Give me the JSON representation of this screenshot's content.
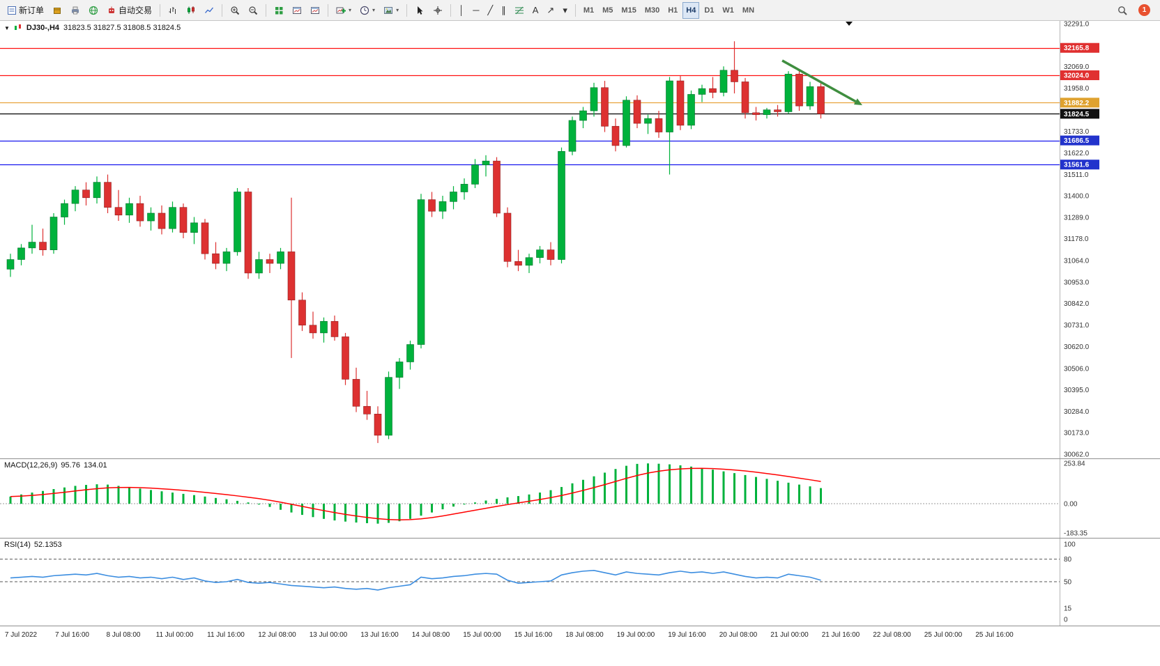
{
  "toolbar": {
    "timeframes": [
      "M1",
      "M5",
      "M15",
      "M30",
      "H1",
      "H4",
      "D1",
      "W1",
      "MN"
    ],
    "active_timeframe": "H4",
    "notification_count": "1",
    "groups": [
      {
        "items": [
          {
            "name": "new-order-button",
            "icon": "form",
            "icon_color": "#4a6fb5",
            "label": "新订单"
          },
          {
            "name": "mql5-icon",
            "icon": "box",
            "icon_color": "#dda01e"
          },
          {
            "name": "print-icon",
            "icon": "print",
            "icon_color": "#7a8aa8"
          },
          {
            "name": "community-icon",
            "icon": "globe",
            "icon_color": "#2f9e44"
          },
          {
            "name": "autotrade-button",
            "icon": "robot",
            "icon_color": "#cc3333",
            "label": "自动交易"
          }
        ]
      },
      {
        "items": [
          {
            "name": "bars-chart-icon",
            "icon": "bars"
          },
          {
            "name": "candles-chart-icon",
            "icon": "candles"
          },
          {
            "name": "line-chart-icon",
            "icon": "linechart"
          }
        ]
      },
      {
        "items": [
          {
            "name": "zoom-in-icon",
            "icon": "zoomin"
          },
          {
            "name": "zoom-out-icon",
            "icon": "zoomout"
          }
        ]
      },
      {
        "items": [
          {
            "name": "tile-windows-icon",
            "icon": "grid",
            "icon_color": "#2f9e44"
          },
          {
            "name": "chart-window-icon",
            "icon": "winchart"
          },
          {
            "name": "chart-window-2-icon",
            "icon": "winchart"
          }
        ]
      },
      {
        "items": [
          {
            "name": "new-chart-button",
            "icon": "pluschart",
            "dropdown": true
          },
          {
            "name": "period-selector-icon",
            "icon": "clock",
            "dropdown": true
          },
          {
            "name": "chart-snapshot-icon",
            "icon": "image",
            "dropdown": true
          }
        ]
      },
      {
        "items": [
          {
            "name": "cursor-icon",
            "icon": "cursor"
          },
          {
            "name": "crosshair-icon",
            "icon": "crosshair"
          }
        ]
      },
      {
        "items": [
          {
            "name": "vertical-line-tool",
            "glyph": "│"
          },
          {
            "name": "horizontal-line-tool",
            "glyph": "─"
          },
          {
            "name": "trendline-tool",
            "glyph": "╱"
          },
          {
            "name": "channel-tool",
            "glyph": "∥"
          },
          {
            "name": "fibonacci-tool",
            "icon": "fibo"
          },
          {
            "name": "text-tool",
            "glyph": "A"
          },
          {
            "name": "arrows-tool",
            "glyph": "↗"
          },
          {
            "name": "objects-dropdown",
            "glyph": "▾"
          }
        ]
      },
      {
        "type": "timeframes"
      }
    ]
  },
  "symbol_bar": {
    "symbol": "DJ30-,H4",
    "ohlc": "31823.5 31827.5 31808.5 31824.5"
  },
  "colors": {
    "bull": "#00b23c",
    "bear": "#dd3131",
    "macd_hist": "#00b23c",
    "macd_signal": "#ff0000",
    "rsi_line": "#3b8de0",
    "arrow": "#3f8e3f"
  },
  "chart_data": [
    {
      "type": "candlestick",
      "symbol": "DJ30-",
      "timeframe": "H4",
      "ohlc_display": {
        "open": "31823.5",
        "high": "31827.5",
        "low": "31808.5",
        "close": "31824.5"
      },
      "price_range": [
        30062.0,
        32291.0
      ],
      "y_ticks": [
        "32291.0",
        "32069.0",
        "31958.0",
        "31733.0",
        "31622.0",
        "31511.0",
        "31400.0",
        "31289.0",
        "31178.0",
        "31064.0",
        "30953.0",
        "30842.0",
        "30731.0",
        "30620.0",
        "30506.0",
        "30395.0",
        "30284.0",
        "30173.0",
        "30062.0"
      ],
      "levels": [
        {
          "price": 32165.8,
          "label": "32165.8",
          "color": "#ff1010",
          "badge": "#e03030"
        },
        {
          "price": 32024.0,
          "label": "32024.0",
          "color": "#ff1010",
          "badge": "#e03030"
        },
        {
          "price": 31882.2,
          "label": "31882.2",
          "color": "#e8a33d",
          "badge": "#dfa22f"
        },
        {
          "price": 31824.5,
          "label": "31824.5",
          "color": "#000000",
          "badge": "#111111"
        },
        {
          "price": 31686.5,
          "label": "31686.5",
          "color": "#1515ee",
          "badge": "#2233cc"
        },
        {
          "price": 31561.6,
          "label": "31561.6",
          "color": "#1515ee",
          "badge": "#2233cc"
        }
      ],
      "annotation": {
        "type": "down-arrow",
        "x1_frac": 0.7382,
        "price1": 32100,
        "x2_frac": 0.8138,
        "price2": 31869
      },
      "candles": [
        [
          31020,
          31100,
          30980,
          31070
        ],
        [
          31070,
          31150,
          31040,
          31130
        ],
        [
          31130,
          31250,
          31100,
          31160
        ],
        [
          31160,
          31230,
          31090,
          31120
        ],
        [
          31120,
          31310,
          31100,
          31290
        ],
        [
          31290,
          31380,
          31250,
          31360
        ],
        [
          31360,
          31450,
          31320,
          31430
        ],
        [
          31430,
          31470,
          31350,
          31390
        ],
        [
          31390,
          31500,
          31360,
          31470
        ],
        [
          31470,
          31510,
          31310,
          31340
        ],
        [
          31340,
          31430,
          31270,
          31300
        ],
        [
          31300,
          31390,
          31260,
          31360
        ],
        [
          31360,
          31400,
          31240,
          31270
        ],
        [
          31270,
          31340,
          31220,
          31310
        ],
        [
          31310,
          31350,
          31200,
          31230
        ],
        [
          31230,
          31370,
          31210,
          31340
        ],
        [
          31340,
          31360,
          31180,
          31210
        ],
        [
          31210,
          31290,
          31150,
          31260
        ],
        [
          31260,
          31280,
          31070,
          31100
        ],
        [
          31100,
          31160,
          31020,
          31050
        ],
        [
          31050,
          31130,
          31010,
          31110
        ],
        [
          31110,
          31440,
          31090,
          31420
        ],
        [
          31420,
          31440,
          30970,
          31000
        ],
        [
          31000,
          31110,
          30970,
          31070
        ],
        [
          31070,
          31100,
          31000,
          31050
        ],
        [
          31050,
          31130,
          31020,
          31110
        ],
        [
          31110,
          31390,
          30560,
          30860
        ],
        [
          30860,
          30900,
          30700,
          30730
        ],
        [
          30730,
          30800,
          30660,
          30690
        ],
        [
          30690,
          30770,
          30640,
          30750
        ],
        [
          30750,
          30780,
          30650,
          30670
        ],
        [
          30670,
          30690,
          30420,
          30450
        ],
        [
          30450,
          30510,
          30280,
          30310
        ],
        [
          30310,
          30390,
          30240,
          30270
        ],
        [
          30270,
          30310,
          30120,
          30160
        ],
        [
          30160,
          30490,
          30140,
          30460
        ],
        [
          30460,
          30560,
          30400,
          30540
        ],
        [
          30540,
          30650,
          30500,
          30630
        ],
        [
          30630,
          31410,
          30610,
          31380
        ],
        [
          31380,
          31420,
          31290,
          31320
        ],
        [
          31320,
          31400,
          31280,
          31370
        ],
        [
          31370,
          31450,
          31330,
          31420
        ],
        [
          31420,
          31490,
          31380,
          31460
        ],
        [
          31460,
          31590,
          31440,
          31560
        ],
        [
          31560,
          31610,
          31500,
          31580
        ],
        [
          31580,
          31600,
          31290,
          31310
        ],
        [
          31310,
          31340,
          31030,
          31060
        ],
        [
          31060,
          31120,
          31010,
          31040
        ],
        [
          31040,
          31100,
          31000,
          31080
        ],
        [
          31080,
          31140,
          31050,
          31120
        ],
        [
          31120,
          31160,
          31040,
          31070
        ],
        [
          31070,
          31650,
          31050,
          31630
        ],
        [
          31630,
          31810,
          31610,
          31790
        ],
        [
          31790,
          31860,
          31750,
          31840
        ],
        [
          31840,
          31985,
          31810,
          31960
        ],
        [
          31960,
          31995,
          31730,
          31760
        ],
        [
          31760,
          31800,
          31630,
          31660
        ],
        [
          31660,
          31915,
          31650,
          31895
        ],
        [
          31895,
          31920,
          31750,
          31775
        ],
        [
          31775,
          31820,
          31720,
          31800
        ],
        [
          31800,
          31840,
          31700,
          31730
        ],
        [
          31730,
          32015,
          31510,
          31995
        ],
        [
          31995,
          32020,
          31740,
          31765
        ],
        [
          31765,
          31945,
          31745,
          31925
        ],
        [
          31925,
          31975,
          31885,
          31955
        ],
        [
          31955,
          32015,
          31905,
          31935
        ],
        [
          31935,
          32070,
          31915,
          32050
        ],
        [
          32050,
          32200,
          31930,
          31990
        ],
        [
          31990,
          32010,
          31800,
          31830
        ],
        [
          31830,
          31860,
          31790,
          31820
        ],
        [
          31820,
          31855,
          31800,
          31845
        ],
        [
          31845,
          31870,
          31810,
          31835
        ],
        [
          31835,
          32045,
          31825,
          32030
        ],
        [
          32030,
          32055,
          31840,
          31865
        ],
        [
          31865,
          31990,
          31845,
          31965
        ],
        [
          31965,
          31985,
          31800,
          31824.5
        ]
      ],
      "x_labels": [
        "7 Jul 2022",
        "7 Jul 16:00",
        "8 Jul 08:00",
        "11 Jul 00:00",
        "11 Jul 16:00",
        "12 Jul 08:00",
        "13 Jul 00:00",
        "13 Jul 16:00",
        "14 Jul 08:00",
        "15 Jul 00:00",
        "15 Jul 16:00",
        "18 Jul 08:00",
        "19 Jul 00:00",
        "19 Jul 16:00",
        "20 Jul 08:00",
        "21 Jul 00:00",
        "21 Jul 16:00",
        "22 Jul 08:00",
        "25 Jul 00:00",
        "25 Jul 16:00"
      ]
    },
    {
      "type": "macd",
      "label": "MACD(12,26,9)",
      "values_display": [
        "95.76",
        "134.01"
      ],
      "range": [
        -183.35,
        253.84
      ],
      "y_ticks": [
        "253.84",
        "0.00",
        "-183.35"
      ],
      "histogram": [
        45,
        58,
        70,
        80,
        92,
        102,
        112,
        118,
        122,
        120,
        112,
        104,
        95,
        86,
        78,
        70,
        62,
        54,
        45,
        36,
        28,
        18,
        8,
        -5,
        -20,
        -38,
        -55,
        -70,
        -84,
        -95,
        -105,
        -112,
        -118,
        -122,
        -125,
        -120,
        -110,
        -95,
        -75,
        -55,
        -35,
        -18,
        -5,
        8,
        20,
        30,
        40,
        48,
        58,
        70,
        85,
        105,
        128,
        150,
        172,
        195,
        218,
        238,
        250,
        253,
        251,
        247,
        241,
        233,
        224,
        214,
        203,
        192,
        180,
        168,
        156,
        144,
        132,
        120,
        109,
        98
      ]
    },
    {
      "type": "rsi",
      "label": "RSI(14)",
      "value_display": "52.1353",
      "range": [
        0,
        100
      ],
      "y_ticks": [
        "100",
        "80",
        "50",
        "15",
        "0"
      ],
      "level_lines": [
        80,
        50
      ],
      "values": [
        55,
        56,
        57,
        56,
        58,
        59,
        60,
        59,
        61,
        58,
        56,
        57,
        55,
        56,
        54,
        56,
        53,
        55,
        51,
        49,
        50,
        53,
        49,
        48,
        49,
        47,
        45,
        44,
        43,
        42,
        43,
        41,
        40,
        41,
        39,
        42,
        44,
        46,
        56,
        54,
        55,
        57,
        58,
        60,
        61,
        60,
        52,
        48,
        49,
        50,
        51,
        59,
        62,
        64,
        65,
        62,
        59,
        63,
        61,
        60,
        59,
        62,
        64,
        62,
        63,
        61,
        63,
        60,
        57,
        55,
        56,
        55,
        60,
        58,
        56,
        52
      ]
    }
  ]
}
